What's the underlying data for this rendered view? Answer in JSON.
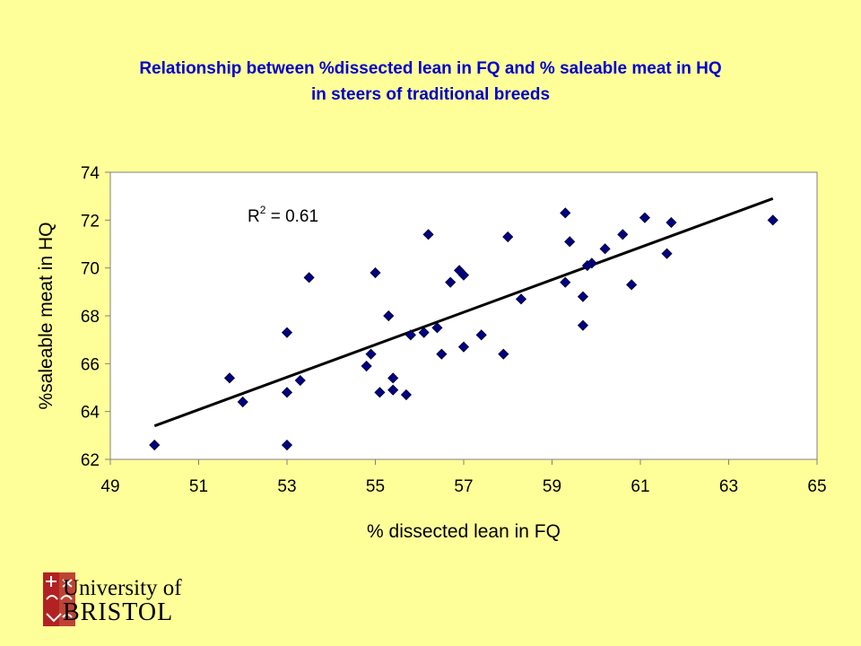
{
  "title": {
    "line1": "Relationship between %dissected lean in FQ and % saleable meat in HQ",
    "line2": "in steers of traditional breeds"
  },
  "logo": {
    "line1": "University of",
    "line2": "BRISTOL"
  },
  "colors": {
    "background": "#FFFF99",
    "title": "#0000CC",
    "marker": "#000080",
    "trendline": "#000000"
  },
  "chart_data": {
    "type": "scatter",
    "xlabel": "% dissected lean in FQ",
    "ylabel": "%saleable meat in HQ",
    "xlim": [
      49,
      65
    ],
    "ylim": [
      62,
      74
    ],
    "xticks": [
      "49",
      "51",
      "53",
      "55",
      "57",
      "59",
      "61",
      "63",
      "65"
    ],
    "yticks": [
      "62",
      "64",
      "66",
      "68",
      "70",
      "72",
      "74"
    ],
    "grid": false,
    "annotation": {
      "text": "R",
      "sup": "2",
      "rest": " = 0.61"
    },
    "trendline": {
      "x": [
        50,
        64
      ],
      "y": [
        63.4,
        72.9
      ]
    },
    "points": [
      [
        50.0,
        62.6
      ],
      [
        51.7,
        65.4
      ],
      [
        52.0,
        64.4
      ],
      [
        53.0,
        62.6
      ],
      [
        53.0,
        64.8
      ],
      [
        53.0,
        67.3
      ],
      [
        53.3,
        65.3
      ],
      [
        53.5,
        69.6
      ],
      [
        54.8,
        65.9
      ],
      [
        54.9,
        66.4
      ],
      [
        55.0,
        69.8
      ],
      [
        55.1,
        64.8
      ],
      [
        55.3,
        68.0
      ],
      [
        55.4,
        64.9
      ],
      [
        55.4,
        65.4
      ],
      [
        55.7,
        64.7
      ],
      [
        55.8,
        67.2
      ],
      [
        56.1,
        67.3
      ],
      [
        56.2,
        71.4
      ],
      [
        56.4,
        67.5
      ],
      [
        56.5,
        66.4
      ],
      [
        56.7,
        69.4
      ],
      [
        56.9,
        69.9
      ],
      [
        57.0,
        69.7
      ],
      [
        57.0,
        66.7
      ],
      [
        57.4,
        67.2
      ],
      [
        57.9,
        66.4
      ],
      [
        58.0,
        71.3
      ],
      [
        58.3,
        68.7
      ],
      [
        59.3,
        72.3
      ],
      [
        59.3,
        69.4
      ],
      [
        59.4,
        71.1
      ],
      [
        59.7,
        68.8
      ],
      [
        59.7,
        67.6
      ],
      [
        59.8,
        70.1
      ],
      [
        59.9,
        70.2
      ],
      [
        60.2,
        70.8
      ],
      [
        60.6,
        71.4
      ],
      [
        60.8,
        69.3
      ],
      [
        61.1,
        72.1
      ],
      [
        61.6,
        70.6
      ],
      [
        61.7,
        71.9
      ],
      [
        64.0,
        72.0
      ]
    ]
  }
}
